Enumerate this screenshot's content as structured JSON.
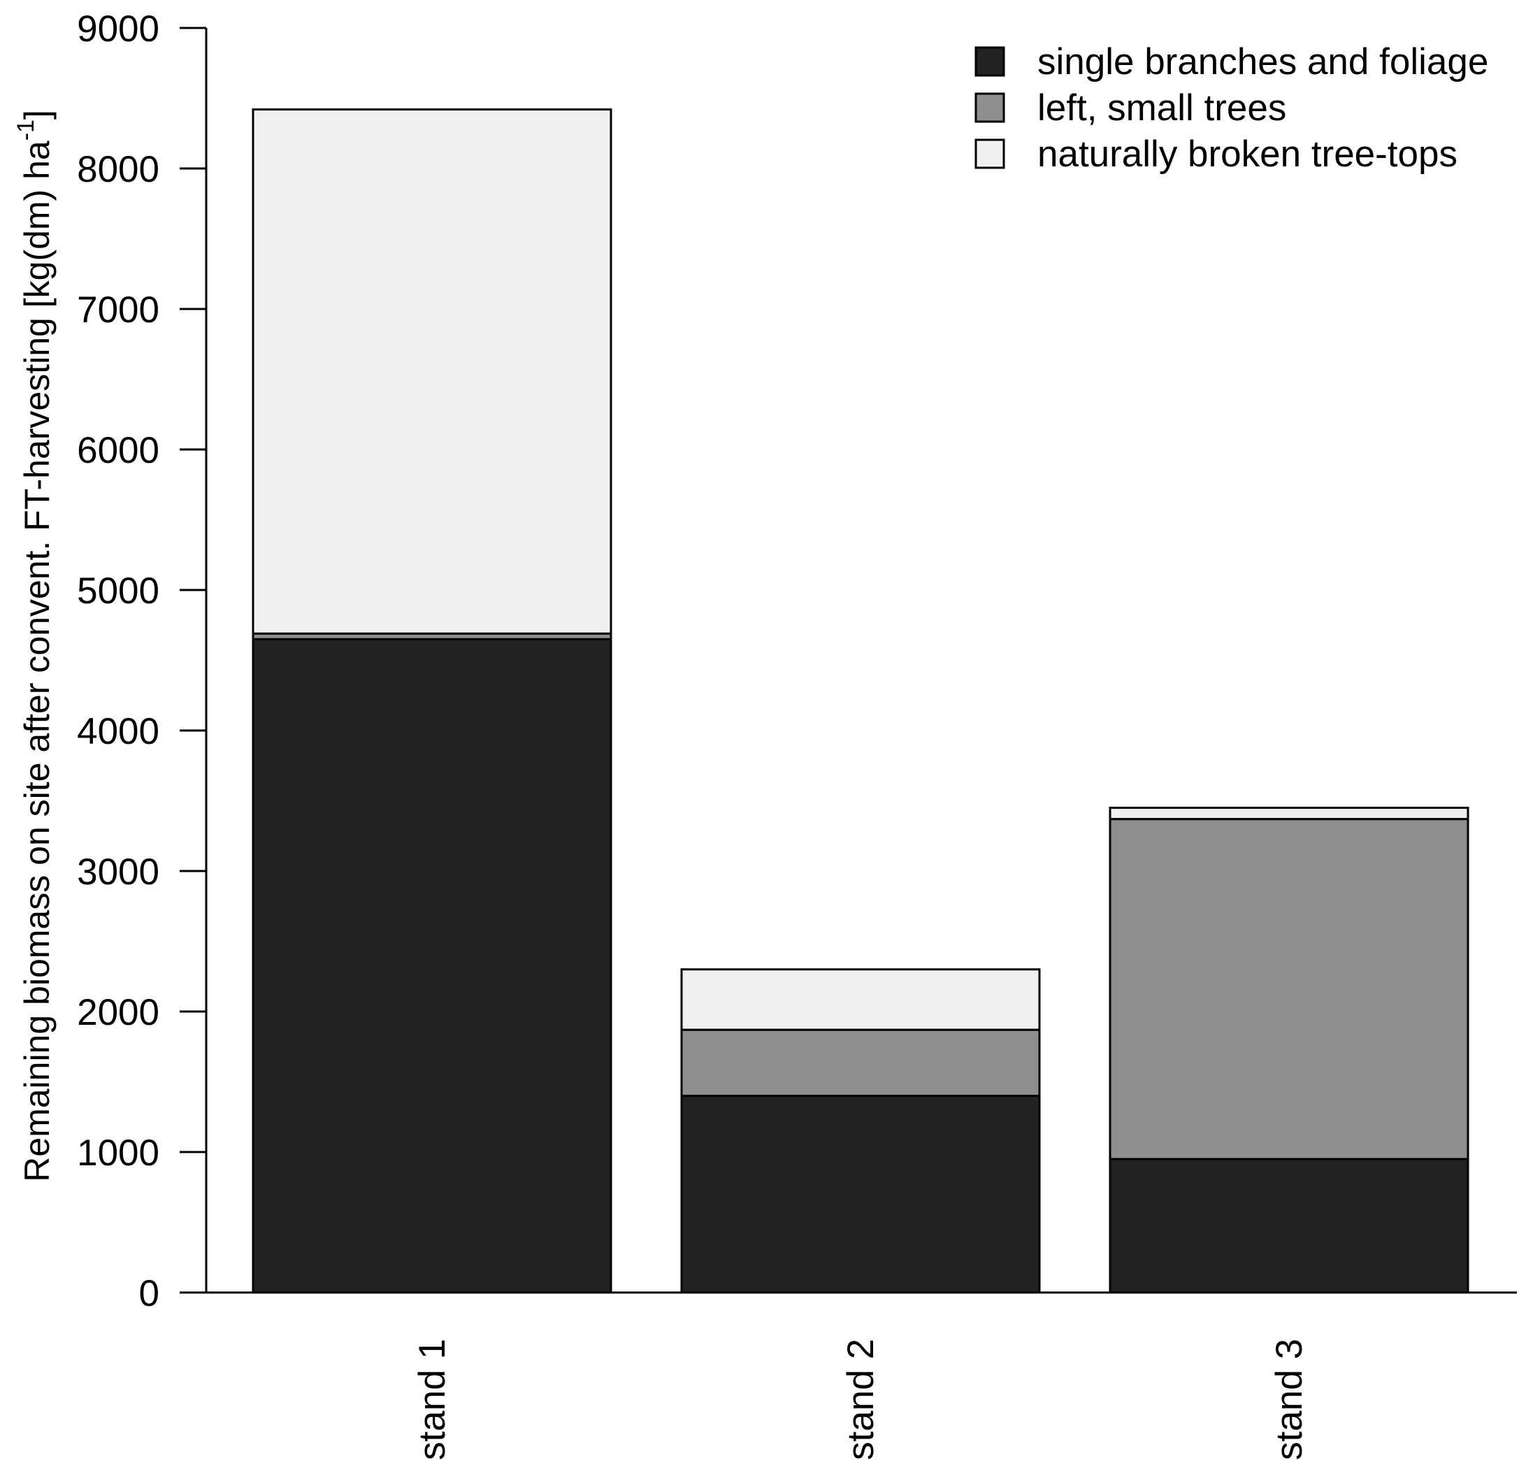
{
  "chart_data": {
    "type": "bar",
    "stacked": true,
    "title": "",
    "xlabel": "",
    "ylabel": "Remaining biomass on site after convent. FT-harvesting [kg(dm) ha",
    "ylabel_superscript": "-1",
    "ylabel_suffix": "]",
    "ylim": [
      0,
      9000
    ],
    "yticks": [
      0,
      1000,
      2000,
      3000,
      4000,
      5000,
      6000,
      7000,
      8000,
      9000
    ],
    "categories": [
      "stand 1",
      "stand 2",
      "stand 3"
    ],
    "grid": false,
    "legend_position": "top-right",
    "series": [
      {
        "name": "single branches and foliage",
        "color": "#222222",
        "values": [
          4650,
          1400,
          950
        ]
      },
      {
        "name": "left, small trees",
        "color": "#8e8e8e",
        "values": [
          40,
          470,
          2420
        ]
      },
      {
        "name": "naturally broken tree-tops",
        "color": "#f0f0f0",
        "values": [
          3730,
          430,
          80
        ]
      }
    ]
  }
}
